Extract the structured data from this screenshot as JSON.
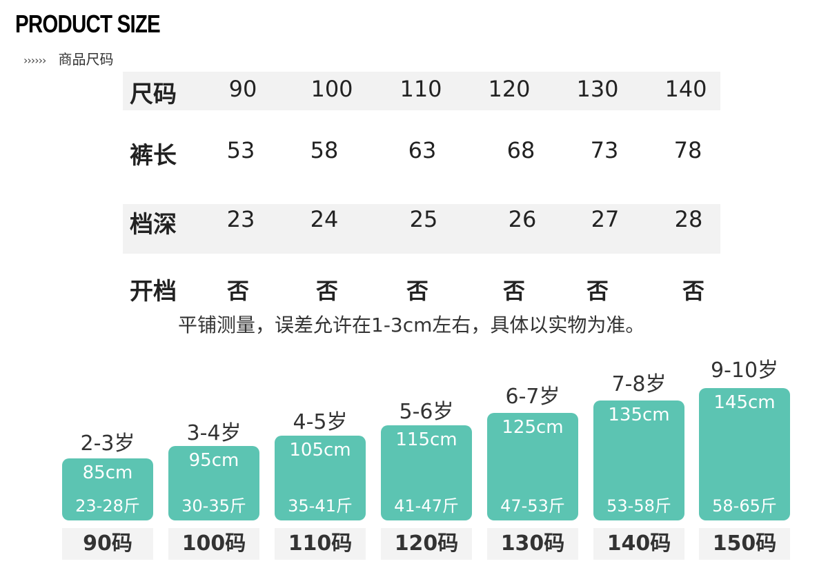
{
  "header": {
    "title": "PRODUCT SIZE",
    "arrows": "›››››› ",
    "subtitle": "商品尺码"
  },
  "table": {
    "rows": [
      {
        "label": "尺码",
        "values": [
          "90",
          "100",
          "110",
          "120",
          "130",
          "140"
        ]
      },
      {
        "label": "裤长",
        "values": [
          "53",
          "58",
          "63",
          "68",
          "73",
          "78"
        ]
      },
      {
        "label": "档深",
        "values": [
          "23",
          "24",
          "25",
          "26",
          "27",
          "28"
        ]
      },
      {
        "label": "开档",
        "values": [
          "否",
          "否",
          "否",
          "否",
          "否",
          "否"
        ]
      }
    ]
  },
  "note": "平铺测量，误差允许在1-3cm左右，具体以实物为准。",
  "chart": {
    "accent_color": "#5cc4b2",
    "items": [
      {
        "age": "2-3岁",
        "height": "85cm",
        "weight": "23-28斤",
        "size": "90码"
      },
      {
        "age": "3-4岁",
        "height": "95cm",
        "weight": "30-35斤",
        "size": "100码"
      },
      {
        "age": "4-5岁",
        "height": "105cm",
        "weight": "35-41斤",
        "size": "110码"
      },
      {
        "age": "5-6岁",
        "height": "115cm",
        "weight": "41-47斤",
        "size": "120码"
      },
      {
        "age": "6-7岁",
        "height": "125cm",
        "weight": "47-53斤",
        "size": "130码"
      },
      {
        "age": "7-8岁",
        "height": "135cm",
        "weight": "53-58斤",
        "size": "140码"
      },
      {
        "age": "9-10岁",
        "height": "145cm",
        "weight": "58-65斤",
        "size": "150码"
      }
    ]
  }
}
